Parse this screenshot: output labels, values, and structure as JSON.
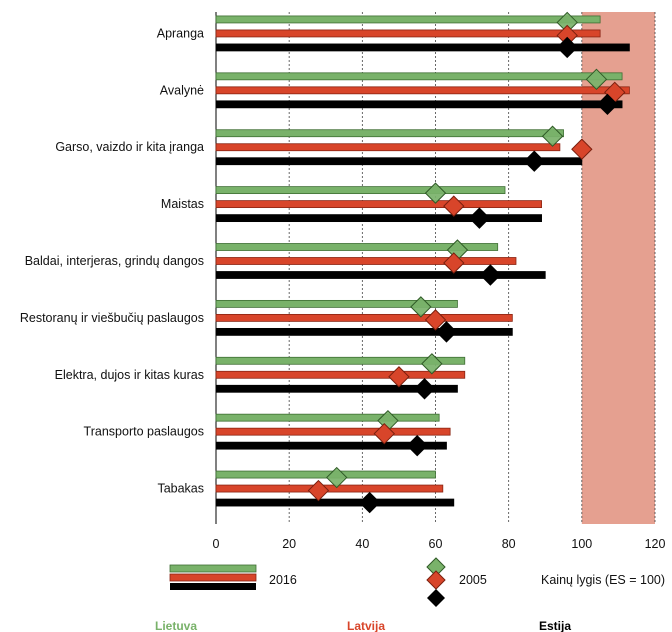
{
  "chart_data": {
    "type": "bar",
    "orientation": "horizontal",
    "categories": [
      "Apranga",
      "Avalynė",
      "Garso, vaizdo ir kita įranga",
      "Maistas",
      "Baldai, interjeras, grindų dangos",
      "Restoranų ir viešbučių paslaugos",
      "Elektra, dujos ir kitas kuras",
      "Transporto paslaugos",
      "Tabakas"
    ],
    "series": [
      {
        "name": "Lietuva",
        "color": "#79b26a",
        "values_2016": [
          105,
          111,
          95,
          79,
          77,
          66,
          68,
          61,
          60
        ],
        "values_2005": [
          96,
          104,
          92,
          60,
          66,
          56,
          59,
          47,
          33
        ]
      },
      {
        "name": "Latvija",
        "color": "#d8452a",
        "values_2016": [
          105,
          113,
          94,
          89,
          82,
          81,
          68,
          64,
          62
        ],
        "values_2005": [
          96,
          109,
          100,
          65,
          65,
          60,
          50,
          46,
          28
        ]
      },
      {
        "name": "Estija",
        "color": "#000000",
        "values_2016": [
          113,
          111,
          100,
          89,
          90,
          81,
          66,
          63,
          65
        ],
        "values_2005": [
          96,
          107,
          87,
          72,
          75,
          63,
          57,
          55,
          42
        ]
      }
    ],
    "xlim": [
      0,
      120
    ],
    "xticks": [
      "0",
      "20",
      "40",
      "60",
      "80",
      "100",
      "120"
    ],
    "grid": true,
    "highlight_range": [
      100,
      120
    ],
    "highlight_color": "#e5a090"
  },
  "legend": {
    "bars_label": "2016",
    "markers_label": "2005",
    "note": "Kainų lygis (ES = 100)",
    "countries": [
      "Lietuva",
      "Latvija",
      "Estija"
    ]
  }
}
